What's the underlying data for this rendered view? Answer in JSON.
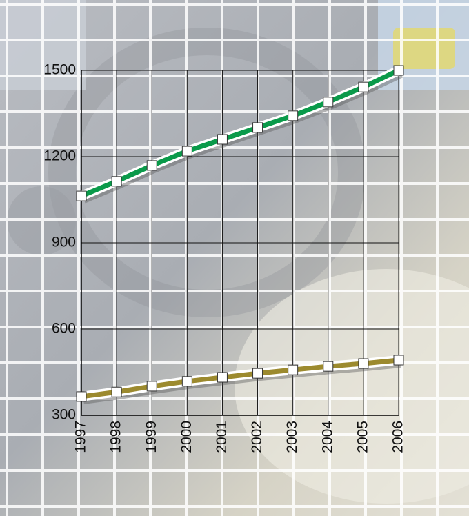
{
  "chart_data": {
    "type": "line",
    "categories": [
      "1997",
      "1998",
      "1999",
      "2000",
      "2001",
      "2002",
      "2003",
      "2004",
      "2005",
      "2006"
    ],
    "series": [
      {
        "color": "#0a9a4a",
        "values": [
          1063,
          1114,
          1169,
          1219,
          1260,
          1301,
          1342,
          1390,
          1442,
          1500
        ]
      },
      {
        "color": "#9c8a2e",
        "values": [
          365,
          381,
          401,
          418,
          432,
          446,
          458,
          470,
          480,
          492
        ]
      }
    ],
    "ylim": [
      300,
      1500
    ],
    "yticks": [
      300,
      600,
      900,
      1200,
      1500
    ],
    "grid": true
  }
}
